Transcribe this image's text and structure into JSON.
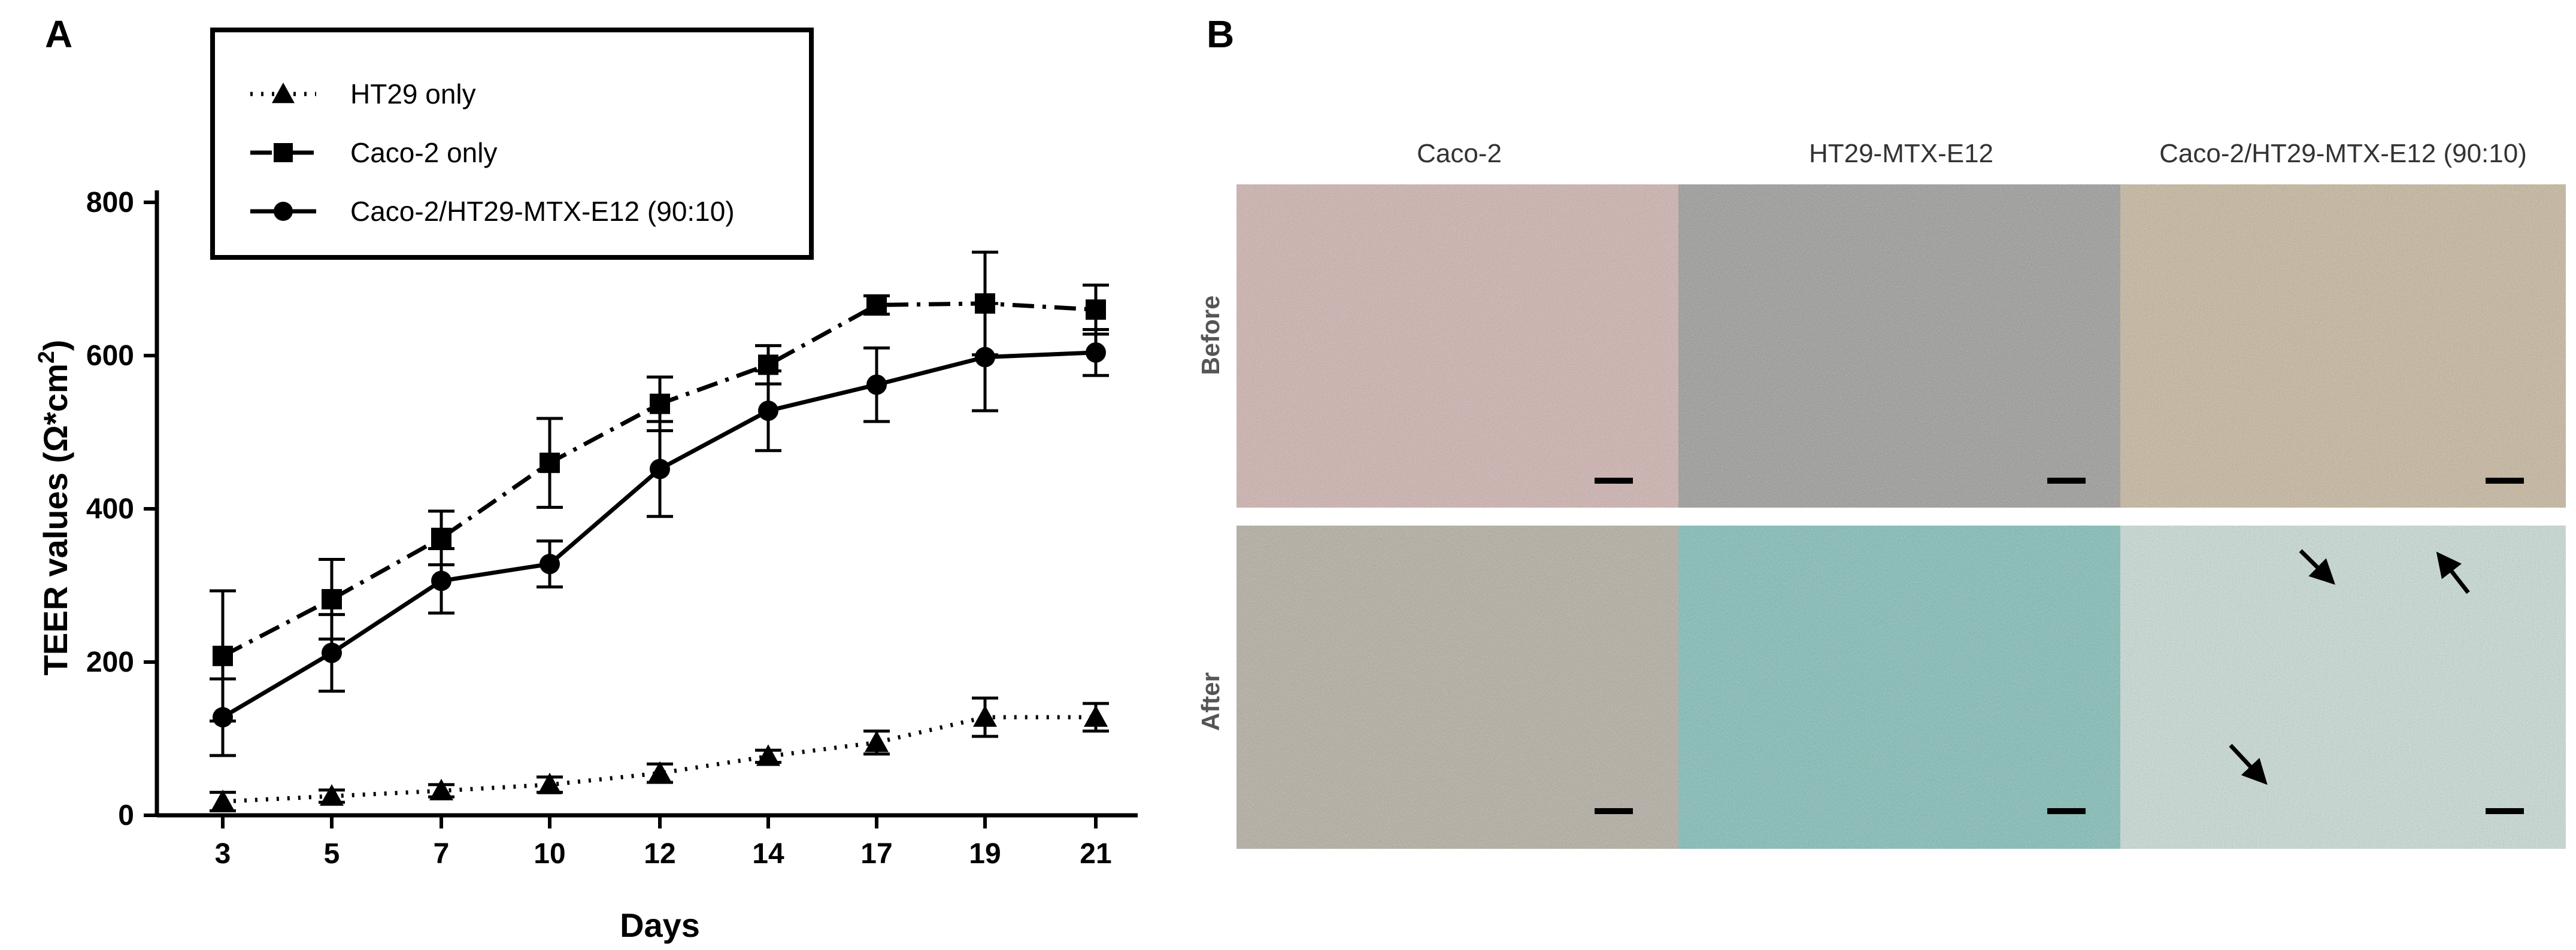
{
  "panels": {
    "a_label": "A",
    "b_label": "B"
  },
  "chart_data": {
    "type": "line",
    "xlabel": "Days",
    "ylabel": "TEER values (Ω*cm²)",
    "ylabel_parts": {
      "base": "TEER values (Ω*cm",
      "sup": "2",
      "close": ")"
    },
    "x": [
      3,
      5,
      7,
      10,
      12,
      14,
      17,
      19,
      21
    ],
    "categories": [
      "3",
      "5",
      "7",
      "10",
      "12",
      "14",
      "17",
      "19",
      "21"
    ],
    "ylim": [
      0,
      800
    ],
    "yticks": [
      0,
      200,
      400,
      600,
      800
    ],
    "legend_position": "top-left",
    "grid": false,
    "series": [
      {
        "name": "HT29 only",
        "marker": "triangle",
        "line": "dotted",
        "values": [
          18,
          25,
          32,
          40,
          55,
          77,
          95,
          128,
          128
        ],
        "errors": [
          12,
          8,
          8,
          10,
          12,
          8,
          15,
          25,
          18
        ]
      },
      {
        "name": "Caco-2 only",
        "marker": "square",
        "line": "dashdot",
        "values": [
          208,
          282,
          362,
          460,
          537,
          588,
          666,
          668,
          660
        ],
        "errors": [
          85,
          52,
          35,
          58,
          35,
          25,
          12,
          67,
          32
        ]
      },
      {
        "name": "Caco-2/HT29-MTX-E12 (90:10)",
        "marker": "circle",
        "line": "solid",
        "values": [
          128,
          212,
          306,
          328,
          452,
          528,
          562,
          598,
          604
        ],
        "errors": [
          50,
          50,
          42,
          30,
          62,
          52,
          48,
          70,
          30
        ]
      }
    ]
  },
  "micrographs": {
    "columns": [
      "Caco-2",
      "HT29-MTX-E12",
      "Caco-2/HT29-MTX-E12 (90:10)"
    ],
    "rows": [
      "Before",
      "After"
    ],
    "tints": [
      [
        "#cfb2ae",
        "#9a9a98",
        "#c7b69c"
      ],
      [
        "#b3ada1",
        "#7fbdb6",
        "#c9dcd6"
      ]
    ]
  }
}
